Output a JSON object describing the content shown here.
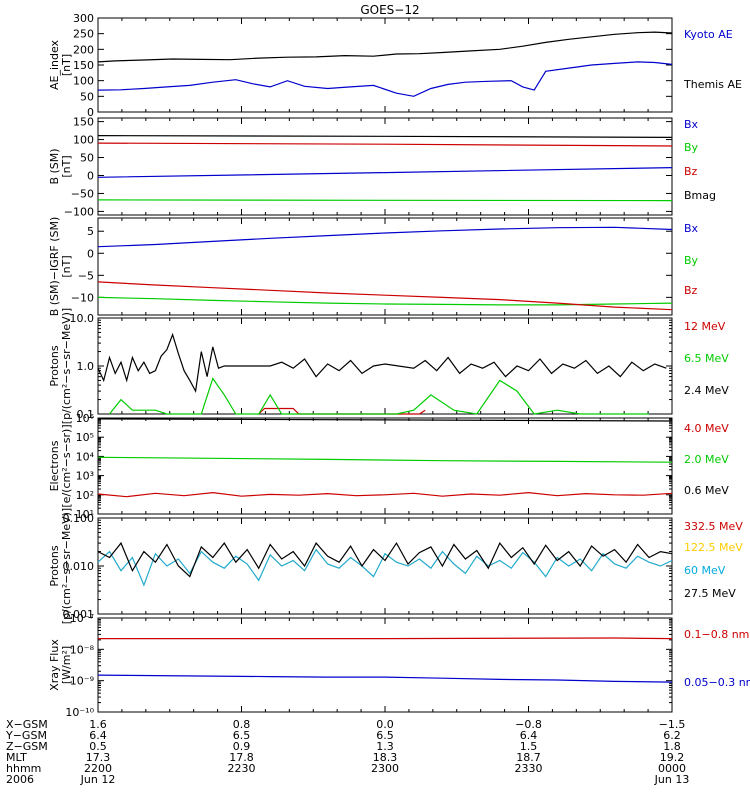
{
  "title": "GOES−12",
  "chart_data": [
    {
      "type": "line",
      "id": "ae",
      "ylabel": [
        "AE_index",
        "[nT]"
      ],
      "ylim": [
        0,
        300
      ],
      "log": false,
      "yticks": [
        0,
        50,
        100,
        150,
        200,
        250,
        300
      ],
      "yticklabels": [
        "0",
        "50",
        "100",
        "150",
        "200",
        "250",
        "300"
      ],
      "series": [
        {
          "name": "Kyoto AE",
          "color": "#000000",
          "legend_color": "#0000cc",
          "x": [
            0,
            0.03,
            0.08,
            0.13,
            0.18,
            0.23,
            0.28,
            0.33,
            0.38,
            0.43,
            0.48,
            0.52,
            0.56,
            0.6,
            0.65,
            0.7,
            0.74,
            0.78,
            0.82,
            0.86,
            0.9,
            0.94,
            0.97,
            1
          ],
          "y": [
            160,
            163,
            166,
            169,
            168,
            167,
            172,
            175,
            176,
            180,
            178,
            185,
            186,
            190,
            195,
            200,
            210,
            222,
            232,
            240,
            248,
            253,
            255,
            252
          ]
        },
        {
          "name": "Themis AE",
          "color": "#0000cc",
          "legend_color": "#000000",
          "x": [
            0,
            0.04,
            0.08,
            0.12,
            0.16,
            0.2,
            0.24,
            0.27,
            0.3,
            0.33,
            0.36,
            0.4,
            0.44,
            0.48,
            0.52,
            0.55,
            0.58,
            0.61,
            0.64,
            0.68,
            0.72,
            0.74,
            0.76,
            0.78,
            0.82,
            0.86,
            0.9,
            0.94,
            0.97,
            1
          ],
          "y": [
            70,
            71,
            75,
            80,
            85,
            95,
            103,
            90,
            80,
            100,
            82,
            75,
            80,
            85,
            60,
            50,
            75,
            88,
            95,
            98,
            100,
            80,
            70,
            130,
            140,
            150,
            155,
            160,
            158,
            152
          ]
        }
      ]
    },
    {
      "type": "line",
      "id": "bsm",
      "ylabel": [
        "B (SM)",
        "[nT]"
      ],
      "ylim": [
        -110,
        160
      ],
      "log": false,
      "yticks": [
        -100,
        -50,
        0,
        50,
        100,
        150
      ],
      "yticklabels": [
        "−100",
        "−50",
        "0",
        "50",
        "100",
        "150"
      ],
      "series": [
        {
          "name": "Bx",
          "color": "#0000cc",
          "legend_color": "#0000cc",
          "x": [
            0,
            0.5,
            1
          ],
          "y": [
            -5,
            8,
            22
          ]
        },
        {
          "name": "By",
          "color": "#00cc00",
          "legend_color": "#00cc00",
          "x": [
            0,
            0.5,
            1
          ],
          "y": [
            -68,
            -69,
            -70
          ]
        },
        {
          "name": "Bz",
          "color": "#cc0000",
          "legend_color": "#cc0000",
          "x": [
            0,
            0.5,
            1
          ],
          "y": [
            90,
            87,
            82
          ]
        },
        {
          "name": "Bmag",
          "color": "#000000",
          "legend_color": "#000000",
          "x": [
            0,
            0.5,
            1
          ],
          "y": [
            111,
            109,
            106
          ]
        }
      ]
    },
    {
      "type": "line",
      "id": "bsm-igrf",
      "ylabel": [
        "B (SM)−IGRF (SM)",
        "[nT]"
      ],
      "ylim": [
        -14,
        8
      ],
      "log": false,
      "yticks": [
        -10,
        -5,
        0,
        5
      ],
      "yticklabels": [
        "−10",
        "−5",
        "0",
        "5"
      ],
      "series": [
        {
          "name": "Bx",
          "color": "#0000cc",
          "legend_color": "#0000cc",
          "x": [
            0,
            0.1,
            0.2,
            0.3,
            0.4,
            0.5,
            0.6,
            0.7,
            0.8,
            0.9,
            1
          ],
          "y": [
            1.5,
            2.0,
            2.7,
            3.4,
            4.0,
            4.6,
            5.1,
            5.5,
            5.8,
            5.9,
            5.4
          ]
        },
        {
          "name": "By",
          "color": "#00cc00",
          "legend_color": "#00cc00",
          "x": [
            0,
            0.1,
            0.2,
            0.3,
            0.4,
            0.5,
            0.6,
            0.7,
            0.8,
            0.9,
            1
          ],
          "y": [
            -10.0,
            -10.3,
            -10.7,
            -11.0,
            -11.3,
            -11.5,
            -11.6,
            -11.7,
            -11.7,
            -11.5,
            -11.3
          ]
        },
        {
          "name": "Bz",
          "color": "#cc0000",
          "legend_color": "#cc0000",
          "x": [
            0,
            0.1,
            0.2,
            0.3,
            0.4,
            0.5,
            0.6,
            0.7,
            0.8,
            0.9,
            1
          ],
          "y": [
            -6.5,
            -7.2,
            -7.8,
            -8.4,
            -9.0,
            -9.5,
            -10.0,
            -10.5,
            -11.3,
            -12.2,
            -12.8
          ]
        }
      ]
    },
    {
      "type": "line",
      "id": "protons-low",
      "ylabel": [
        "Protons",
        "[p/(cm²−s−sr−MeV)]"
      ],
      "ylim": [
        0.1,
        10
      ],
      "log": true,
      "yticks": [
        0.1,
        1,
        10
      ],
      "yticklabels": [
        "0.1",
        "1.0",
        "10.0"
      ],
      "series": [
        {
          "name": "12 MeV",
          "color": "#cc0000",
          "legend_color": "#cc0000",
          "x": [
            0.28,
            0.29,
            0.34,
            0.35,
            0.56,
            0.57
          ],
          "y": [
            0.1,
            0.13,
            0.13,
            0.1,
            0.1,
            0.12
          ]
        },
        {
          "name": "6.5 MeV",
          "color": "#00cc00",
          "legend_color": "#00cc00",
          "x": [
            0.02,
            0.04,
            0.06,
            0.08,
            0.1,
            0.12,
            0.15,
            0.18,
            0.2,
            0.22,
            0.24,
            0.26,
            0.28,
            0.3,
            0.32,
            0.36,
            0.4,
            0.44,
            0.48,
            0.52,
            0.55,
            0.58,
            0.62,
            0.66,
            0.7,
            0.73,
            0.76,
            0.8,
            0.84,
            0.88,
            0.92,
            0.96
          ],
          "y": [
            0.1,
            0.2,
            0.12,
            0.12,
            0.12,
            0.1,
            0.1,
            0.1,
            0.55,
            0.25,
            0.1,
            0.1,
            0.1,
            0.25,
            0.1,
            0.1,
            0.1,
            0.1,
            0.1,
            0.1,
            0.12,
            0.25,
            0.12,
            0.1,
            0.5,
            0.3,
            0.1,
            0.12,
            0.1,
            0.1,
            0.1,
            0.1
          ]
        },
        {
          "name": "2.4 MeV",
          "color": "#000000",
          "legend_color": "#000000",
          "x": [
            0.0,
            0.01,
            0.02,
            0.03,
            0.04,
            0.05,
            0.06,
            0.07,
            0.08,
            0.09,
            0.1,
            0.11,
            0.12,
            0.13,
            0.14,
            0.15,
            0.16,
            0.17,
            0.18,
            0.19,
            0.2,
            0.21,
            0.22,
            0.23,
            0.24,
            0.25,
            0.3,
            0.32,
            0.34,
            0.36,
            0.38,
            0.4,
            0.42,
            0.44,
            0.46,
            0.48,
            0.5,
            0.55,
            0.57,
            0.59,
            0.61,
            0.63,
            0.65,
            0.67,
            0.69,
            0.71,
            0.73,
            0.75,
            0.77,
            0.79,
            0.81,
            0.83,
            0.85,
            0.87,
            0.89,
            0.91,
            0.93,
            0.95,
            0.97,
            0.99
          ],
          "y": [
            0.9,
            0.5,
            1.5,
            0.7,
            1.2,
            0.5,
            1.5,
            0.8,
            1.2,
            0.7,
            0.8,
            1.6,
            2.2,
            4.5,
            1.8,
            0.8,
            0.5,
            0.3,
            2.0,
            0.6,
            2.5,
            0.9,
            1.0,
            1.0,
            1.0,
            1.0,
            1.0,
            1.2,
            0.9,
            1.4,
            0.6,
            1.1,
            0.8,
            1.3,
            0.7,
            1.0,
            1.1,
            0.9,
            1.3,
            0.8,
            1.5,
            0.7,
            1.1,
            0.9,
            1.2,
            0.6,
            1.0,
            0.8,
            1.4,
            0.7,
            1.1,
            0.9,
            1.3,
            0.7,
            1.0,
            0.6,
            1.2,
            0.8,
            1.1,
            0.9
          ]
        }
      ]
    },
    {
      "type": "line",
      "id": "electrons",
      "ylabel": [
        "Electrons",
        "[e/(cm²−s−sr)]"
      ],
      "ylim": [
        10,
        1000000
      ],
      "log": true,
      "yticks": [
        10,
        100,
        1000,
        10000,
        100000,
        1000000
      ],
      "yticklabels": [
        "10¹",
        "10²",
        "10³",
        "10⁴",
        "10⁵",
        "10⁶"
      ],
      "series": [
        {
          "name": "4.0 MeV",
          "color": "#cc0000",
          "legend_color": "#cc0000",
          "x": [
            0,
            0.05,
            0.1,
            0.15,
            0.2,
            0.25,
            0.3,
            0.35,
            0.4,
            0.45,
            0.5,
            0.55,
            0.6,
            0.65,
            0.7,
            0.75,
            0.8,
            0.85,
            0.9,
            0.95,
            1
          ],
          "y": [
            110,
            80,
            120,
            90,
            130,
            85,
            105,
            95,
            115,
            90,
            100,
            120,
            85,
            110,
            95,
            130,
            90,
            115,
            100,
            95,
            120
          ]
        },
        {
          "name": "2.0 MeV",
          "color": "#00cc00",
          "legend_color": "#00cc00",
          "x": [
            0,
            0.2,
            0.4,
            0.6,
            0.8,
            1
          ],
          "y": [
            9000,
            8000,
            7000,
            6000,
            5500,
            5000
          ]
        },
        {
          "name": "0.6 MeV",
          "color": "#000000",
          "legend_color": "#000000",
          "x": [
            0,
            0.5,
            1
          ],
          "y": [
            900000,
            800000,
            700000
          ]
        }
      ]
    },
    {
      "type": "line",
      "id": "protons-high",
      "ylabel": [
        "Protons",
        "[p/(cm²−s−sr−MeV)]"
      ],
      "ylim": [
        0.001,
        0.1
      ],
      "log": true,
      "yticks": [
        0.001,
        0.01,
        0.1
      ],
      "yticklabels": [
        "0.001",
        "0.010",
        "0.100"
      ],
      "series": [
        {
          "name": "332.5 MeV",
          "color": "#cc0000",
          "legend_color": "#cc0000",
          "x": [],
          "y": []
        },
        {
          "name": "122.5 MeV",
          "color": "#ffcc00",
          "legend_color": "#ffcc00",
          "x": [],
          "y": []
        },
        {
          "name": "60 MeV",
          "color": "#22aacc",
          "legend_color": "#00aadd",
          "x": [
            0.0,
            0.02,
            0.04,
            0.06,
            0.08,
            0.1,
            0.12,
            0.14,
            0.16,
            0.18,
            0.2,
            0.22,
            0.24,
            0.26,
            0.28,
            0.3,
            0.32,
            0.34,
            0.36,
            0.38,
            0.4,
            0.42,
            0.44,
            0.46,
            0.48,
            0.5,
            0.52,
            0.54,
            0.56,
            0.58,
            0.6,
            0.62,
            0.64,
            0.66,
            0.68,
            0.7,
            0.72,
            0.74,
            0.76,
            0.78,
            0.8,
            0.82,
            0.84,
            0.86,
            0.88,
            0.9,
            0.92,
            0.94,
            0.96,
            0.98,
            1.0
          ],
          "y": [
            0.012,
            0.02,
            0.008,
            0.015,
            0.004,
            0.018,
            0.01,
            0.014,
            0.007,
            0.02,
            0.012,
            0.009,
            0.016,
            0.011,
            0.005,
            0.017,
            0.01,
            0.013,
            0.008,
            0.022,
            0.011,
            0.009,
            0.015,
            0.01,
            0.006,
            0.018,
            0.012,
            0.01,
            0.014,
            0.009,
            0.02,
            0.011,
            0.007,
            0.016,
            0.01,
            0.013,
            0.009,
            0.019,
            0.012,
            0.006,
            0.015,
            0.01,
            0.014,
            0.008,
            0.018,
            0.011,
            0.009,
            0.016,
            0.012,
            0.01,
            0.013
          ]
        },
        {
          "name": "27.5 MeV",
          "color": "#000000",
          "legend_color": "#000000",
          "x": [
            0.0,
            0.02,
            0.04,
            0.06,
            0.08,
            0.1,
            0.12,
            0.14,
            0.16,
            0.18,
            0.2,
            0.22,
            0.24,
            0.26,
            0.28,
            0.3,
            0.32,
            0.34,
            0.36,
            0.38,
            0.4,
            0.42,
            0.44,
            0.46,
            0.48,
            0.5,
            0.52,
            0.54,
            0.56,
            0.58,
            0.6,
            0.62,
            0.64,
            0.66,
            0.68,
            0.7,
            0.72,
            0.74,
            0.76,
            0.78,
            0.8,
            0.82,
            0.84,
            0.86,
            0.88,
            0.9,
            0.92,
            0.94,
            0.96,
            0.98,
            1.0
          ],
          "y": [
            0.02,
            0.015,
            0.03,
            0.008,
            0.02,
            0.012,
            0.028,
            0.01,
            0.006,
            0.025,
            0.015,
            0.03,
            0.012,
            0.022,
            0.009,
            0.028,
            0.014,
            0.02,
            0.01,
            0.03,
            0.016,
            0.012,
            0.026,
            0.01,
            0.022,
            0.013,
            0.03,
            0.011,
            0.019,
            0.025,
            0.01,
            0.028,
            0.014,
            0.021,
            0.009,
            0.03,
            0.015,
            0.024,
            0.011,
            0.027,
            0.013,
            0.02,
            0.01,
            0.026,
            0.016,
            0.022,
            0.012,
            0.028,
            0.015,
            0.02,
            0.018
          ]
        }
      ]
    },
    {
      "type": "line",
      "id": "xray",
      "ylabel": [
        "Xray Flux",
        "[W/m²]"
      ],
      "ylim": [
        1e-10,
        1e-07
      ],
      "log": true,
      "yticks": [
        1e-10,
        1e-09,
        1e-08,
        1e-07
      ],
      "yticklabels": [
        "10⁻¹⁰",
        "10⁻⁹",
        "10⁻⁸",
        "10⁻⁷"
      ],
      "series": [
        {
          "name": "0.1−0.8 nm",
          "color": "#cc0000",
          "legend_color": "#cc0000",
          "x": [
            0,
            0.5,
            0.9,
            1
          ],
          "y": [
            2.2e-08,
            2.2e-08,
            2.3e-08,
            2.2e-08
          ]
        },
        {
          "name": "0.05−0.3 nm",
          "color": "#0000cc",
          "legend_color": "#0000cc",
          "x": [
            0,
            0.1,
            0.2,
            0.3,
            0.4,
            0.5,
            0.6,
            0.7,
            0.8,
            0.9,
            1
          ],
          "y": [
            1.5e-09,
            1.45e-09,
            1.4e-09,
            1.35e-09,
            1.3e-09,
            1.3e-09,
            1.2e-09,
            1.1e-09,
            1.05e-09,
            9.5e-10,
            9e-10
          ]
        }
      ]
    }
  ],
  "x_axis": {
    "rows": [
      {
        "label": "X−GSM",
        "values": [
          "1.6",
          "0.8",
          "0.0",
          "−0.8",
          "−1.5"
        ]
      },
      {
        "label": "Y−GSM",
        "values": [
          "6.4",
          "6.5",
          "6.5",
          "6.4",
          "6.2"
        ]
      },
      {
        "label": "Z−GSM",
        "values": [
          "0.5",
          "0.9",
          "1.3",
          "1.5",
          "1.8"
        ]
      },
      {
        "label": "MLT",
        "values": [
          "17.3",
          "17.8",
          "18.3",
          "18.7",
          "19.2"
        ]
      },
      {
        "label": "hhmm",
        "values": [
          "2200",
          "2230",
          "2300",
          "2330",
          "0000"
        ]
      },
      {
        "label": "2006",
        "values": [
          "Jun 12",
          "",
          "",
          "",
          "Jun 13"
        ]
      }
    ]
  }
}
